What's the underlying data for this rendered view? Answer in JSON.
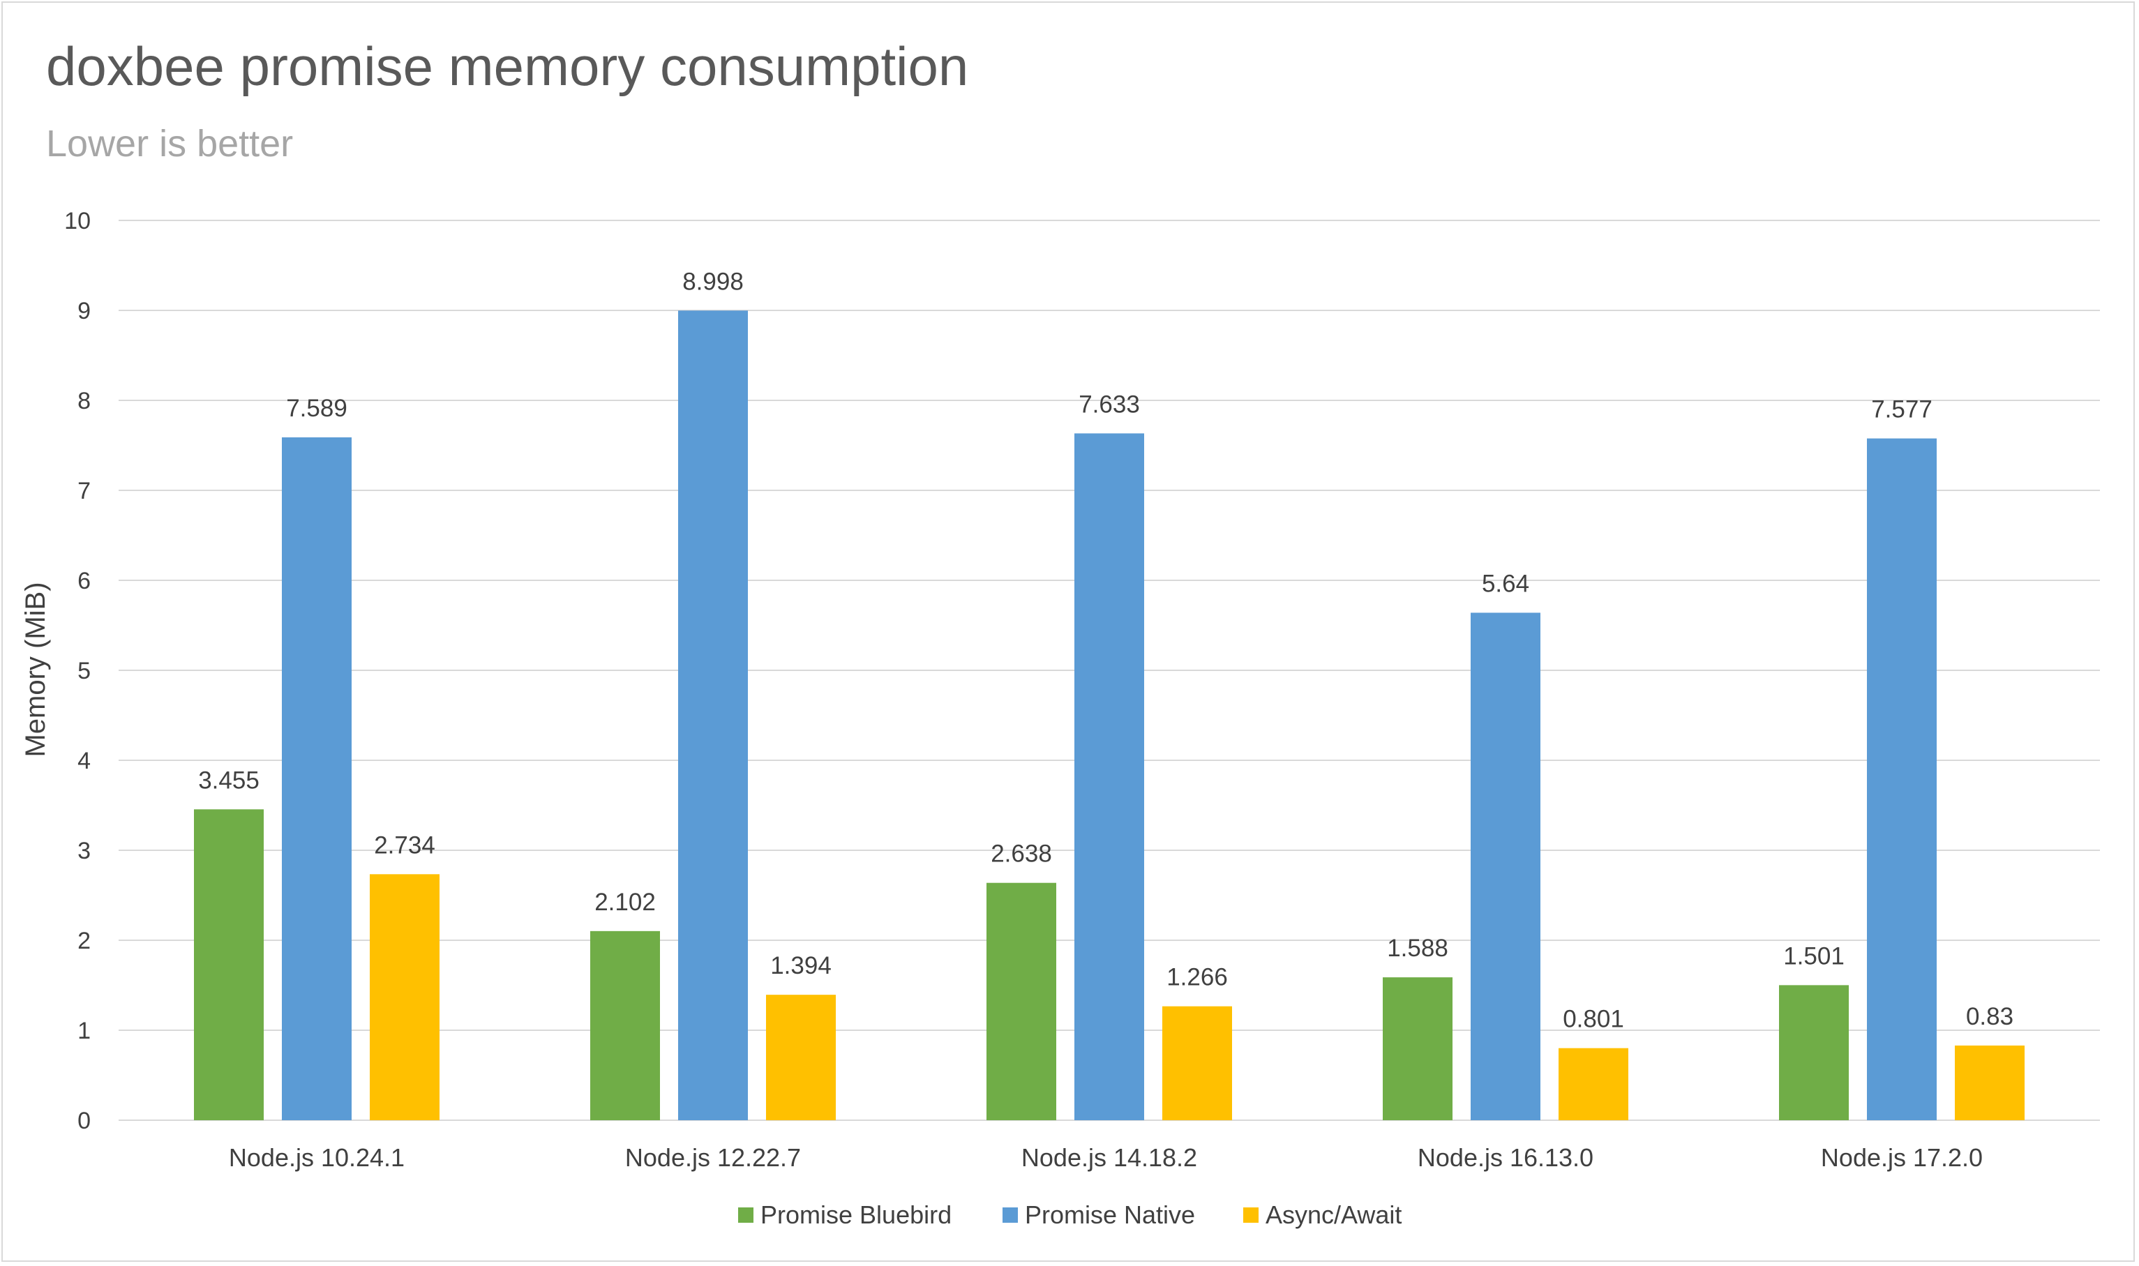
{
  "chart_data": {
    "type": "bar",
    "title": "doxbee promise memory consumption",
    "subtitle": "Lower is better",
    "xlabel": "",
    "ylabel": "Memory (MiB)",
    "ylim": [
      0,
      10
    ],
    "yticks": [
      0,
      1,
      2,
      3,
      4,
      5,
      6,
      7,
      8,
      9,
      10
    ],
    "grid": true,
    "legend_position": "bottom",
    "categories": [
      "Node.js 10.24.1",
      "Node.js 12.22.7",
      "Node.js 14.18.2",
      "Node.js 16.13.0",
      "Node.js 17.2.0"
    ],
    "series": [
      {
        "name": "Promise Bluebird",
        "color": "#70ad47",
        "values": [
          3.455,
          2.102,
          2.638,
          1.588,
          1.501
        ],
        "labels": [
          "3.455",
          "2.102",
          "2.638",
          "1.588",
          "1.501"
        ]
      },
      {
        "name": "Promise Native",
        "color": "#5b9bd5",
        "values": [
          7.589,
          8.998,
          7.633,
          5.64,
          7.577
        ],
        "labels": [
          "7.589",
          "8.998",
          "7.633",
          "5.64",
          "7.577"
        ]
      },
      {
        "name": "Async/Await",
        "color": "#ffc000",
        "values": [
          2.734,
          1.394,
          1.266,
          0.801,
          0.83
        ],
        "labels": [
          "2.734",
          "1.394",
          "1.266",
          "0.801",
          "0.83"
        ]
      }
    ]
  }
}
